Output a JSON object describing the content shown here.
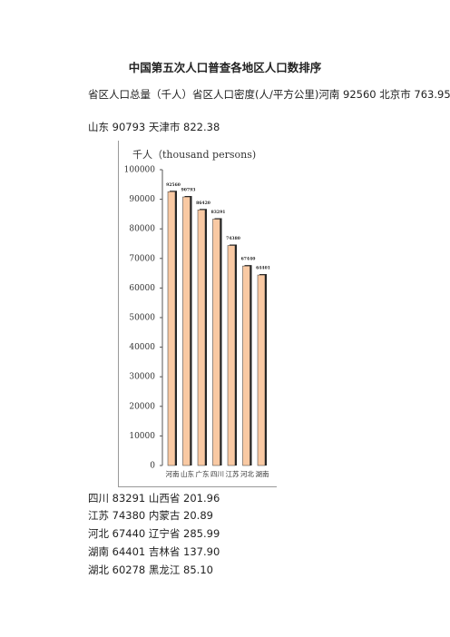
{
  "title": "中国第五次人口普查各地区人口数排序",
  "paragraphs": [
    "省区人口总量（千人）省区人口密度(人/平方公里)河南 92560 北京市 763.95",
    "山东 90793 天津市 822.38"
  ],
  "chart_data": {
    "type": "bar",
    "title": "千人（thousand persons)",
    "categories": [
      "河南",
      "山东",
      "广东",
      "四川",
      "江苏",
      "河北",
      "湖南"
    ],
    "values": [
      92560,
      90793,
      86420,
      83291,
      74380,
      67440,
      64401
    ],
    "color": "#f9c9a3",
    "ylim": [
      0,
      100000
    ],
    "yticks": [
      0,
      10000,
      20000,
      30000,
      40000,
      50000,
      60000,
      70000,
      80000,
      90000,
      100000
    ]
  },
  "lines": [
    "四川 83291 山西省 201.96",
    "江苏 74380 内蒙古 20.89",
    "河北 67440 辽宁省 285.99",
    "湖南 64401 吉林省 137.90",
    "湖北 60278 黑龙江 85.10"
  ]
}
